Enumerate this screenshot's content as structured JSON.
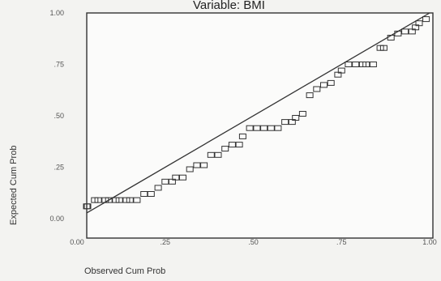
{
  "chart_data": {
    "type": "scatter",
    "title": "Variable: BMI",
    "xlabel": "Observed Cum Prob",
    "ylabel": "Expected Cum Prob",
    "xlim": [
      0,
      1
    ],
    "ylim": [
      0,
      1
    ],
    "xticks": [
      "0.00",
      ".25",
      ".50",
      ".75",
      "1.00"
    ],
    "yticks": [
      "0.00",
      ".25",
      ".50",
      ".75",
      "1.00"
    ],
    "grid": false,
    "reference_line": {
      "from": [
        0,
        0
      ],
      "to": [
        1,
        1
      ]
    },
    "x": [
      0.01,
      0.03,
      0.05,
      0.06,
      0.08,
      0.09,
      0.11,
      0.12,
      0.14,
      0.15,
      0.17,
      0.19,
      0.21,
      0.23,
      0.25,
      0.27,
      0.28,
      0.3,
      0.32,
      0.34,
      0.36,
      0.38,
      0.4,
      0.42,
      0.44,
      0.46,
      0.47,
      0.49,
      0.51,
      0.53,
      0.55,
      0.57,
      0.59,
      0.61,
      0.62,
      0.64,
      0.66,
      0.68,
      0.7,
      0.72,
      0.74,
      0.75,
      0.77,
      0.79,
      0.81,
      0.82,
      0.84,
      0.86,
      0.87,
      0.89,
      0.91,
      0.93,
      0.95,
      0.96,
      0.97,
      0.99
    ],
    "y": [
      0.06,
      0.06,
      0.09,
      0.09,
      0.09,
      0.09,
      0.09,
      0.09,
      0.09,
      0.09,
      0.09,
      0.12,
      0.12,
      0.15,
      0.18,
      0.18,
      0.2,
      0.2,
      0.24,
      0.26,
      0.26,
      0.31,
      0.31,
      0.34,
      0.36,
      0.36,
      0.4,
      0.44,
      0.44,
      0.44,
      0.44,
      0.44,
      0.47,
      0.47,
      0.49,
      0.51,
      0.6,
      0.63,
      0.65,
      0.66,
      0.7,
      0.72,
      0.75,
      0.75,
      0.75,
      0.75,
      0.75,
      0.83,
      0.83,
      0.88,
      0.9,
      0.91,
      0.91,
      0.93,
      0.95,
      0.97
    ]
  }
}
